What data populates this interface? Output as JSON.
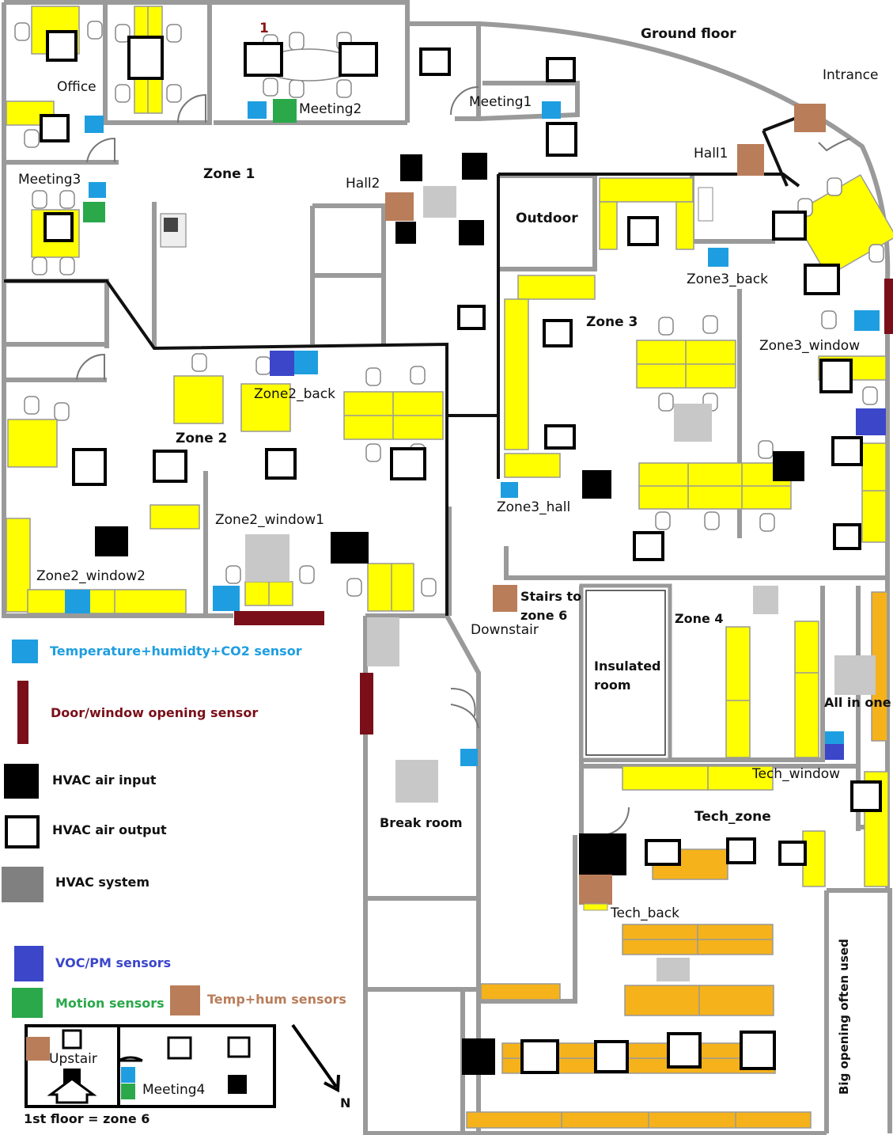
{
  "title": "Ground floor",
  "colors": {
    "temp_hum_co2": "#1e9ee0",
    "door_window": "#7a0f19",
    "hvac_input": "#000000",
    "hvac_output": "#ffffff",
    "hvac_system": "#c8c8c8",
    "voc_pm": "#3b46c9",
    "motion": "#2aa84a",
    "temp_hum": "#b97d5a",
    "desk_yellow": "#ffff00",
    "desk_orange": "#f5b21a",
    "wall": "#9a9a9a"
  },
  "rooms": {
    "office": "Office",
    "meeting2": "Meeting2",
    "meeting1": "Meeting1",
    "meeting3": "Meeting3",
    "one": "1",
    "zone1": "Zone 1",
    "hall2": "Hall2",
    "hall1": "Hall1",
    "intrance": "Intrance",
    "outdoor": "Outdoor",
    "zone3_back": "Zone3_back",
    "zone3": "Zone 3",
    "zone3_window": "Zone3_window",
    "zone3_hall": "Zone3_hall",
    "zone2": "Zone 2",
    "zone2_back": "Zone2_back",
    "zone2_window1": "Zone2_window1",
    "zone2_window2": "Zone2_window2",
    "stairs1": "Stairs to",
    "stairs2": "zone 6",
    "downstair": "Downstair",
    "zone4": "Zone 4",
    "insulated1": "Insulated",
    "insulated2": "room",
    "all_in_one": "All in one",
    "tech_window": "Tech_window",
    "tech_zone": "Tech_zone",
    "break_room": "Break room",
    "tech_back": "Tech_back",
    "big_opening": "Big opening often used"
  },
  "legend": {
    "temp_hum_co2": "Temperature+humidty+CO2 sensor",
    "door_window": "Door/window  opening sensor",
    "hvac_input": "HVAC air input",
    "hvac_output": "HVAC air output",
    "hvac_system": "HVAC system",
    "voc_pm": "VOC/PM sensors",
    "motion": "Motion sensors",
    "temp_hum": "Temp+hum sensors"
  },
  "first_floor": {
    "upstair": "Upstair",
    "meeting4": "Meeting4",
    "caption": "1st floor = zone 6"
  },
  "compass": "N"
}
